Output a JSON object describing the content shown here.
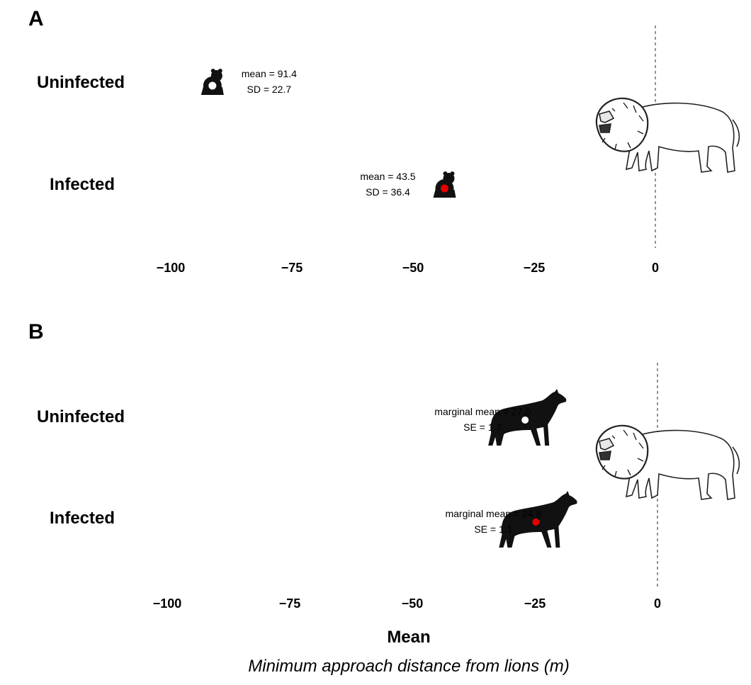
{
  "x_axis": {
    "title": "Mean",
    "subtitle": "Minimum approach distance from lions (m)"
  },
  "chart_data": [
    {
      "type": "scatter",
      "panel": "A",
      "categories": [
        "Uninfected",
        "Infected"
      ],
      "x_ticks": [
        -100,
        -75,
        -50,
        -25,
        0
      ],
      "x_tick_labels": [
        "−100",
        "−75",
        "−50",
        "−25",
        "0"
      ],
      "xlim": [
        -100,
        0
      ],
      "reference_line": 0,
      "points": [
        {
          "category": "Uninfected",
          "x": -91.4,
          "color": "#ffffff",
          "label_lines": [
            "mean = 91.4",
            "SD = 22.7"
          ]
        },
        {
          "category": "Infected",
          "x": -43.5,
          "color": "#e60000",
          "label_lines": [
            "mean = 43.5",
            "SD = 36.4"
          ]
        }
      ],
      "marker_icon": "hyena-cub-icon",
      "reference_icon": "lion-icon"
    },
    {
      "type": "scatter",
      "panel": "B",
      "categories": [
        "Uninfected",
        "Infected"
      ],
      "x_ticks": [
        -100,
        -75,
        -50,
        -25,
        0
      ],
      "x_tick_labels": [
        "−100",
        "−75",
        "−50",
        "−25",
        "0"
      ],
      "xlim": [
        -100,
        0
      ],
      "reference_line": 0,
      "points": [
        {
          "category": "Uninfected",
          "x": -27.0,
          "color": "#ffffff",
          "label_lines": [
            "marginal mean = 27.0",
            "SE = 1.7"
          ]
        },
        {
          "category": "Infected",
          "x": -24.8,
          "color": "#e60000",
          "label_lines": [
            "marginal mean = 24.8",
            "SE = 1.1"
          ]
        }
      ],
      "marker_icon": "adult-hyena-icon",
      "reference_icon": "lion-icon"
    }
  ]
}
